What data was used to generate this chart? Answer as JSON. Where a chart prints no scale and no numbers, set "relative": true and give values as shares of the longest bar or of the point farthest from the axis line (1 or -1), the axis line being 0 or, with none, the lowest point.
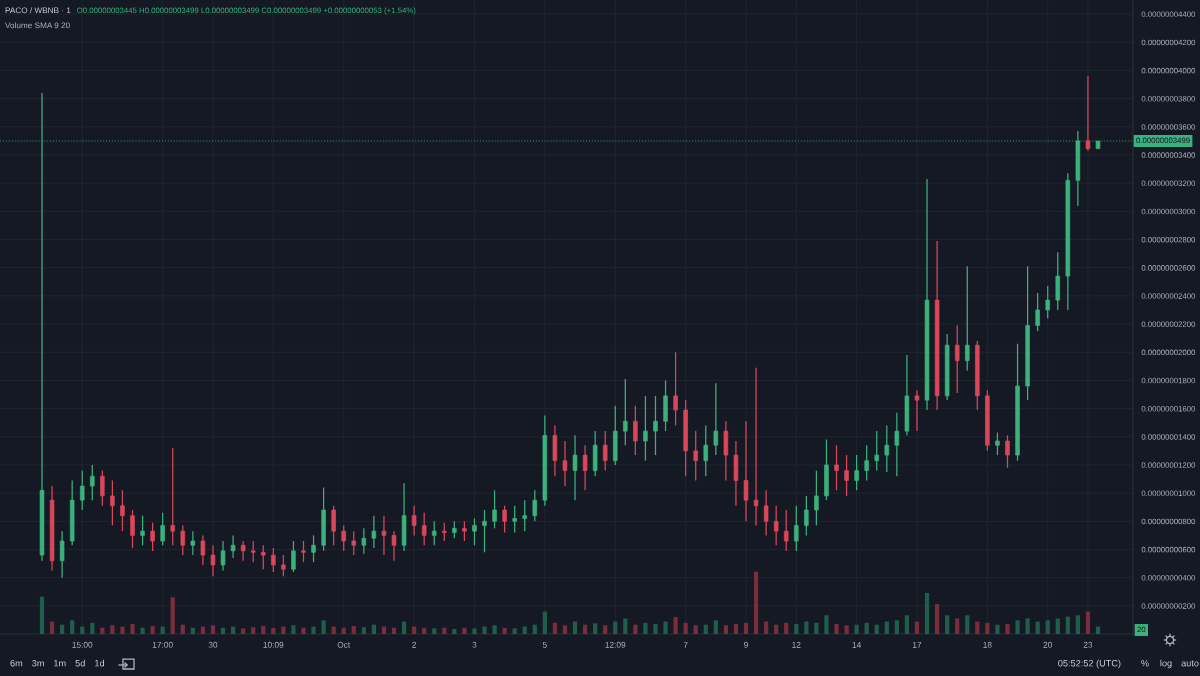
{
  "chart_data": [
    {
      "type": "candlestick",
      "title": "PACO / WBNB · 1",
      "subtitle": "O0.00000003445 H0.00000003499 L0.00000003499 C0.00000003499 +0.00000000053 (+1.54%)",
      "categories": [
        null,
        null,
        null,
        null,
        "15:00",
        null,
        null,
        null,
        null,
        null,
        null,
        null,
        "17:00",
        null,
        null,
        null,
        null,
        "30",
        null,
        null,
        null,
        null,
        null,
        "10:09",
        null,
        null,
        null,
        null,
        null,
        null,
        "Oct",
        null,
        null,
        null,
        null,
        null,
        null,
        "2",
        null,
        null,
        null,
        null,
        null,
        "3",
        null,
        null,
        null,
        null,
        null,
        null,
        "5",
        null,
        null,
        null,
        null,
        null,
        null,
        "12:09",
        null,
        null,
        null,
        null,
        null,
        null,
        "7",
        null,
        null,
        null,
        null,
        null,
        "9",
        null,
        null,
        null,
        null,
        "12",
        null,
        null,
        null,
        null,
        null,
        "14",
        null,
        null,
        null,
        null,
        null,
        "17",
        null,
        null,
        null,
        null,
        null,
        null,
        "18",
        null,
        null,
        null,
        null,
        null,
        "20",
        null,
        null,
        null,
        "23",
        null
      ],
      "ohlc": [
        [
          5.6e-09,
          3.84e-08,
          5.2e-09,
          1.02e-08
        ],
        [
          9.5e-09,
          1.05e-08,
          4.5e-09,
          5.2e-09
        ],
        [
          5.2e-09,
          7.3e-09,
          4e-09,
          6.6e-09
        ],
        [
          6.6e-09,
          1.09e-08,
          6.3e-09,
          9.5e-09
        ],
        [
          9.5e-09,
          1.16e-08,
          8.8e-09,
          1.05e-08
        ],
        [
          1.05e-08,
          1.2e-08,
          9.5e-09,
          1.12e-08
        ],
        [
          1.12e-08,
          1.16e-08,
          9.1e-09,
          9.8e-09
        ],
        [
          9.8e-09,
          1.09e-08,
          7.7e-09,
          9.1e-09
        ],
        [
          9.1e-09,
          1.02e-08,
          7.3e-09,
          8.4e-09
        ],
        [
          8.4e-09,
          8.8e-09,
          6.1e-09,
          7e-09
        ],
        [
          7e-09,
          8.4e-09,
          6.3e-09,
          7.3e-09
        ],
        [
          7.3e-09,
          7.9e-09,
          5.9e-09,
          6.6e-09
        ],
        [
          6.6e-09,
          8.6e-09,
          6.3e-09,
          7.7e-09
        ],
        [
          7.7e-09,
          1.32e-08,
          6.3e-09,
          7.3e-09
        ],
        [
          7.3e-09,
          7.7e-09,
          5.6e-09,
          6.3e-09
        ],
        [
          6.3e-09,
          7.3e-09,
          5.6e-09,
          6.6e-09
        ],
        [
          6.6e-09,
          7e-09,
          4.9e-09,
          5.6e-09
        ],
        [
          5.6e-09,
          6.3e-09,
          4.1e-09,
          4.9e-09
        ],
        [
          4.9e-09,
          6.6e-09,
          4.5e-09,
          5.9e-09
        ],
        [
          5.9e-09,
          7e-09,
          5.4e-09,
          6.3e-09
        ],
        [
          6.3e-09,
          6.6e-09,
          5.2e-09,
          5.9e-09
        ],
        [
          5.9e-09,
          6.6e-09,
          5.1e-09,
          5.8e-09
        ],
        [
          5.8e-09,
          6.3e-09,
          4.6e-09,
          5.6e-09
        ],
        [
          5.6e-09,
          6.1e-09,
          4.4e-09,
          4.9e-09
        ],
        [
          4.9e-09,
          5.6e-09,
          4.1e-09,
          4.6e-09
        ],
        [
          4.6e-09,
          6.6e-09,
          4.4e-09,
          5.9e-09
        ],
        [
          5.9e-09,
          6.6e-09,
          5.1e-09,
          5.8e-09
        ],
        [
          5.8e-09,
          7e-09,
          5.1e-09,
          6.3e-09
        ],
        [
          6.3e-09,
          1.04e-08,
          5.9e-09,
          8.8e-09
        ],
        [
          8.8e-09,
          9.1e-09,
          6.3e-09,
          7.3e-09
        ],
        [
          7.3e-09,
          7.7e-09,
          5.9e-09,
          6.6e-09
        ],
        [
          6.6e-09,
          7.3e-09,
          5.6e-09,
          6.3e-09
        ],
        [
          6.3e-09,
          7.5e-09,
          5.7e-09,
          6.8e-09
        ],
        [
          6.8e-09,
          8.4e-09,
          6.1e-09,
          7.3e-09
        ],
        [
          7.3e-09,
          8.4e-09,
          5.6e-09,
          7e-09
        ],
        [
          7e-09,
          7.3e-09,
          5.2e-09,
          6.3e-09
        ],
        [
          6.3e-09,
          1.07e-08,
          5.9e-09,
          8.4e-09
        ],
        [
          8.4e-09,
          9.1e-09,
          7e-09,
          7.7e-09
        ],
        [
          7.7e-09,
          8.6e-09,
          6.3e-09,
          7e-09
        ],
        [
          7e-09,
          8e-09,
          6.3e-09,
          7.3e-09
        ],
        [
          7.3e-09,
          7.9e-09,
          6.6e-09,
          7.2e-09
        ],
        [
          7.2e-09,
          8e-09,
          6.8e-09,
          7.5e-09
        ],
        [
          7.5e-09,
          8e-09,
          6.6e-09,
          7.3e-09
        ],
        [
          7.3e-09,
          8.2e-09,
          6.3e-09,
          7.7e-09
        ],
        [
          7.7e-09,
          8.8e-09,
          5.8e-09,
          8e-09
        ],
        [
          8e-09,
          1.02e-08,
          7.5e-09,
          8.8e-09
        ],
        [
          8.8e-09,
          9.1e-09,
          7.2e-09,
          8e-09
        ],
        [
          8e-09,
          9.1e-09,
          7.2e-09,
          8.2e-09
        ],
        [
          8.2e-09,
          9.5e-09,
          7.3e-09,
          8.4e-09
        ],
        [
          8.4e-09,
          1.02e-08,
          8e-09,
          9.5e-09
        ],
        [
          9.5e-09,
          1.55e-08,
          9.1e-09,
          1.41e-08
        ],
        [
          1.41e-08,
          1.48e-08,
          1.12e-08,
          1.23e-08
        ],
        [
          1.23e-08,
          1.37e-08,
          1.05e-08,
          1.16e-08
        ],
        [
          1.16e-08,
          1.41e-08,
          9.5e-09,
          1.27e-08
        ],
        [
          1.27e-08,
          1.34e-08,
          1.02e-08,
          1.16e-08
        ],
        [
          1.16e-08,
          1.44e-08,
          1.12e-08,
          1.34e-08
        ],
        [
          1.34e-08,
          1.44e-08,
          1.16e-08,
          1.23e-08
        ],
        [
          1.23e-08,
          1.62e-08,
          1.2e-08,
          1.44e-08
        ],
        [
          1.44e-08,
          1.81e-08,
          1.34e-08,
          1.51e-08
        ],
        [
          1.51e-08,
          1.62e-08,
          1.27e-08,
          1.37e-08
        ],
        [
          1.37e-08,
          1.69e-08,
          1.23e-08,
          1.44e-08
        ],
        [
          1.44e-08,
          1.69e-08,
          1.27e-08,
          1.51e-08
        ],
        [
          1.51e-08,
          1.8e-08,
          1.44e-08,
          1.69e-08
        ],
        [
          1.69e-08,
          2e-08,
          1.48e-08,
          1.59e-08
        ],
        [
          1.59e-08,
          1.66e-08,
          1.12e-08,
          1.3e-08
        ],
        [
          1.3e-08,
          1.44e-08,
          1.09e-08,
          1.23e-08
        ],
        [
          1.23e-08,
          1.48e-08,
          1.12e-08,
          1.34e-08
        ],
        [
          1.34e-08,
          1.78e-08,
          1.27e-08,
          1.44e-08
        ],
        [
          1.44e-08,
          1.51e-08,
          1.09e-08,
          1.27e-08
        ],
        [
          1.27e-08,
          1.37e-08,
          9.1e-09,
          1.09e-08
        ],
        [
          1.09e-08,
          1.51e-08,
          8e-09,
          9.5e-09
        ],
        [
          9.5e-09,
          1.89e-08,
          7.7e-09,
          9.1e-09
        ],
        [
          9.1e-09,
          1.02e-08,
          7e-09,
          8e-09
        ],
        [
          8e-09,
          9.1e-09,
          6.3e-09,
          7.3e-09
        ],
        [
          7.3e-09,
          8.8e-09,
          5.9e-09,
          6.6e-09
        ],
        [
          6.6e-09,
          9.1e-09,
          5.9e-09,
          7.7e-09
        ],
        [
          7.7e-09,
          9.8e-09,
          7e-09,
          8.8e-09
        ],
        [
          8.8e-09,
          1.16e-08,
          7.7e-09,
          9.8e-09
        ],
        [
          9.8e-09,
          1.38e-08,
          9.5e-09,
          1.2e-08
        ],
        [
          1.2e-08,
          1.34e-08,
          1.02e-08,
          1.16e-08
        ],
        [
          1.16e-08,
          1.27e-08,
          9.8e-09,
          1.09e-08
        ],
        [
          1.09e-08,
          1.27e-08,
          1.02e-08,
          1.16e-08
        ],
        [
          1.16e-08,
          1.34e-08,
          1.09e-08,
          1.23e-08
        ],
        [
          1.23e-08,
          1.44e-08,
          1.16e-08,
          1.27e-08
        ],
        [
          1.27e-08,
          1.48e-08,
          1.15e-08,
          1.34e-08
        ],
        [
          1.34e-08,
          1.57e-08,
          1.12e-08,
          1.44e-08
        ],
        [
          1.44e-08,
          1.98e-08,
          1.41e-08,
          1.69e-08
        ],
        [
          1.69e-08,
          1.73e-08,
          1.44e-08,
          1.66e-08
        ],
        [
          1.66e-08,
          3.23e-08,
          1.59e-08,
          2.37e-08
        ],
        [
          2.37e-08,
          2.79e-08,
          1.59e-08,
          1.69e-08
        ],
        [
          1.69e-08,
          2.13e-08,
          1.66e-08,
          2.05e-08
        ],
        [
          2.05e-08,
          2.19e-08,
          1.71e-08,
          1.94e-08
        ],
        [
          1.94e-08,
          2.61e-08,
          1.87e-08,
          2.05e-08
        ],
        [
          2.05e-08,
          2.08e-08,
          1.59e-08,
          1.69e-08
        ],
        [
          1.69e-08,
          1.73e-08,
          1.3e-08,
          1.34e-08
        ],
        [
          1.34e-08,
          1.43e-08,
          1.27e-08,
          1.37e-08
        ],
        [
          1.37e-08,
          1.41e-08,
          1.18e-08,
          1.27e-08
        ],
        [
          1.27e-08,
          2.06e-08,
          1.23e-08,
          1.76e-08
        ],
        [
          1.76e-08,
          2.61e-08,
          1.66e-08,
          2.19e-08
        ],
        [
          2.19e-08,
          2.42e-08,
          2.15e-08,
          2.3e-08
        ],
        [
          2.3e-08,
          2.47e-08,
          2.24e-08,
          2.37e-08
        ],
        [
          2.37e-08,
          2.71e-08,
          2.3e-08,
          2.54e-08
        ],
        [
          2.54e-08,
          3.27e-08,
          2.3e-08,
          3.22e-08
        ],
        [
          3.22e-08,
          3.57e-08,
          3.04e-08,
          3.5e-08
        ],
        [
          3.5e-08,
          3.96e-08,
          3.43e-08,
          3.445e-08
        ],
        [
          3.445e-08,
          3.499e-08,
          3.445e-08,
          3.499e-08
        ]
      ],
      "colors": [
        "#3bb27c",
        "#d9485a",
        "#3bb27c",
        "#3bb27c",
        "#3bb27c",
        "#3bb27c",
        "#d9485a",
        "#d9485a",
        "#d9485a",
        "#d9485a",
        "#3bb27c",
        "#d9485a",
        "#3bb27c",
        "#d9485a",
        "#d9485a",
        "#3bb27c",
        "#d9485a",
        "#d9485a",
        "#3bb27c",
        "#3bb27c",
        "#d9485a",
        "#d9485a",
        "#d9485a",
        "#d9485a",
        "#d9485a",
        "#3bb27c",
        "#d9485a",
        "#3bb27c",
        "#3bb27c",
        "#d9485a",
        "#d9485a",
        "#d9485a",
        "#3bb27c",
        "#3bb27c",
        "#d9485a",
        "#d9485a",
        "#3bb27c",
        "#d9485a",
        "#d9485a",
        "#3bb27c",
        "#d9485a",
        "#3bb27c",
        "#d9485a",
        "#3bb27c",
        "#3bb27c",
        "#3bb27c",
        "#d9485a",
        "#3bb27c",
        "#3bb27c",
        "#3bb27c",
        "#3bb27c",
        "#d9485a",
        "#d9485a",
        "#3bb27c",
        "#d9485a",
        "#3bb27c",
        "#d9485a",
        "#3bb27c",
        "#3bb27c",
        "#d9485a",
        "#3bb27c",
        "#3bb27c",
        "#3bb27c",
        "#d9485a",
        "#d9485a",
        "#d9485a",
        "#3bb27c",
        "#3bb27c",
        "#d9485a",
        "#d9485a",
        "#d9485a",
        "#d9485a",
        "#d9485a",
        "#d9485a",
        "#d9485a",
        "#3bb27c",
        "#3bb27c",
        "#3bb27c",
        "#3bb27c",
        "#d9485a",
        "#d9485a",
        "#3bb27c",
        "#3bb27c",
        "#3bb27c",
        "#3bb27c",
        "#3bb27c",
        "#3bb27c",
        "#d9485a",
        "#3bb27c",
        "#d9485a",
        "#3bb27c",
        "#d9485a",
        "#3bb27c",
        "#d9485a",
        "#d9485a",
        "#3bb27c",
        "#d9485a",
        "#3bb27c",
        "#3bb27c",
        "#3bb27c",
        "#3bb27c",
        "#3bb27c",
        "#3bb27c",
        "#3bb27c",
        "#d9485a",
        "#3bb27c"
      ],
      "ylim": [
        0,
        4.5e-08
      ],
      "yticks": [
        {
          "value": 2e-09,
          "label": "0.00000000200"
        },
        {
          "value": 4e-09,
          "label": "0.00000000400"
        },
        {
          "value": 6e-09,
          "label": "0.00000000600"
        },
        {
          "value": 8e-09,
          "label": "0.00000000800"
        },
        {
          "value": 1e-08,
          "label": "0.00000001000"
        },
        {
          "value": 1.2e-08,
          "label": "0.00000001200"
        },
        {
          "value": 1.4e-08,
          "label": "0.00000001400"
        },
        {
          "value": 1.6e-08,
          "label": "0.00000001600"
        },
        {
          "value": 1.8e-08,
          "label": "0.00000001800"
        },
        {
          "value": 2e-08,
          "label": "0.00000002000"
        },
        {
          "value": 2.2e-08,
          "label": "0.00000002200"
        },
        {
          "value": 2.4e-08,
          "label": "0.00000002400"
        },
        {
          "value": 2.6e-08,
          "label": "0.00000002600"
        },
        {
          "value": 2.8e-08,
          "label": "0.00000002800"
        },
        {
          "value": 3e-08,
          "label": "0.00000003000"
        },
        {
          "value": 3.2e-08,
          "label": "0.00000003200"
        },
        {
          "value": 3.4e-08,
          "label": "0.00000003400"
        },
        {
          "value": 3.6e-08,
          "label": "0.00000003600"
        },
        {
          "value": 3.8e-08,
          "label": "0.00000003800"
        },
        {
          "value": 4e-08,
          "label": "0.00000004000"
        },
        {
          "value": 4.2e-08,
          "label": "0.00000004200"
        },
        {
          "value": 4.4e-08,
          "label": "0.00000004400"
        }
      ],
      "grid": true,
      "ref_lines": [
        {
          "axis": "y",
          "value": 3.499e-08,
          "label": "0.00000003499",
          "color": "#3bb27c",
          "line_style": "dotted"
        }
      ],
      "annotations": [
        "6m",
        "3m",
        "1m",
        "5d",
        "1d",
        "05:52:52 (UTC)",
        "%",
        "log",
        "auto",
        "20"
      ]
    },
    {
      "type": "bar",
      "relative": true,
      "title": "Volume SMA 9 20",
      "categories": [
        null,
        null,
        null,
        null,
        null,
        null,
        null,
        null,
        null,
        null,
        null,
        null,
        null,
        null,
        null,
        null,
        null,
        null,
        null,
        null,
        null,
        null,
        null,
        null,
        null,
        null,
        null,
        null,
        null,
        null,
        null,
        null,
        null,
        null,
        null,
        null,
        null,
        null,
        null,
        null,
        null,
        null,
        null,
        null,
        null,
        null,
        null,
        null,
        null,
        null,
        null,
        null,
        null,
        null,
        null,
        null,
        null,
        null,
        null,
        null,
        null,
        null,
        null,
        null,
        null,
        null,
        null,
        null,
        null,
        null,
        null,
        null,
        null,
        null,
        null,
        null,
        null,
        null,
        null,
        null,
        null,
        null,
        null,
        null,
        null,
        null,
        null,
        null,
        null,
        null,
        null,
        null,
        null,
        null,
        null,
        null,
        null,
        null,
        null,
        null,
        null,
        null,
        null,
        null,
        null,
        null
      ],
      "values": [
        0.6,
        0.2,
        0.15,
        0.22,
        0.12,
        0.18,
        0.1,
        0.14,
        0.12,
        0.16,
        0.1,
        0.13,
        0.12,
        0.59,
        0.15,
        0.1,
        0.12,
        0.14,
        0.1,
        0.12,
        0.09,
        0.11,
        0.13,
        0.1,
        0.12,
        0.14,
        0.1,
        0.12,
        0.22,
        0.12,
        0.1,
        0.13,
        0.11,
        0.15,
        0.12,
        0.1,
        0.2,
        0.12,
        0.1,
        0.09,
        0.1,
        0.08,
        0.1,
        0.09,
        0.12,
        0.14,
        0.1,
        0.09,
        0.12,
        0.15,
        0.36,
        0.18,
        0.14,
        0.2,
        0.15,
        0.17,
        0.14,
        0.2,
        0.25,
        0.15,
        0.18,
        0.16,
        0.2,
        0.27,
        0.18,
        0.14,
        0.15,
        0.22,
        0.14,
        0.16,
        0.18,
        1.0,
        0.2,
        0.15,
        0.18,
        0.16,
        0.2,
        0.18,
        0.3,
        0.16,
        0.14,
        0.15,
        0.18,
        0.15,
        0.2,
        0.22,
        0.3,
        0.2,
        0.66,
        0.48,
        0.3,
        0.25,
        0.3,
        0.2,
        0.18,
        0.15,
        0.16,
        0.22,
        0.25,
        0.2,
        0.22,
        0.25,
        0.28,
        0.3,
        0.36,
        0.12
      ],
      "colors": [
        "#1f5e4a",
        "#7a2e3b",
        "#1f5e4a",
        "#1f5e4a",
        "#1f5e4a",
        "#1f5e4a",
        "#7a2e3b",
        "#7a2e3b",
        "#7a2e3b",
        "#7a2e3b",
        "#1f5e4a",
        "#7a2e3b",
        "#1f5e4a",
        "#7a2e3b",
        "#7a2e3b",
        "#1f5e4a",
        "#7a2e3b",
        "#7a2e3b",
        "#1f5e4a",
        "#1f5e4a",
        "#7a2e3b",
        "#7a2e3b",
        "#7a2e3b",
        "#7a2e3b",
        "#7a2e3b",
        "#1f5e4a",
        "#7a2e3b",
        "#1f5e4a",
        "#1f5e4a",
        "#7a2e3b",
        "#7a2e3b",
        "#7a2e3b",
        "#1f5e4a",
        "#1f5e4a",
        "#7a2e3b",
        "#7a2e3b",
        "#1f5e4a",
        "#7a2e3b",
        "#7a2e3b",
        "#1f5e4a",
        "#7a2e3b",
        "#1f5e4a",
        "#7a2e3b",
        "#1f5e4a",
        "#1f5e4a",
        "#1f5e4a",
        "#7a2e3b",
        "#1f5e4a",
        "#1f5e4a",
        "#1f5e4a",
        "#1f5e4a",
        "#7a2e3b",
        "#7a2e3b",
        "#1f5e4a",
        "#7a2e3b",
        "#1f5e4a",
        "#7a2e3b",
        "#1f5e4a",
        "#1f5e4a",
        "#7a2e3b",
        "#1f5e4a",
        "#1f5e4a",
        "#1f5e4a",
        "#7a2e3b",
        "#7a2e3b",
        "#7a2e3b",
        "#1f5e4a",
        "#1f5e4a",
        "#7a2e3b",
        "#7a2e3b",
        "#7a2e3b",
        "#7a2e3b",
        "#7a2e3b",
        "#7a2e3b",
        "#7a2e3b",
        "#1f5e4a",
        "#1f5e4a",
        "#1f5e4a",
        "#1f5e4a",
        "#7a2e3b",
        "#7a2e3b",
        "#1f5e4a",
        "#1f5e4a",
        "#1f5e4a",
        "#1f5e4a",
        "#1f5e4a",
        "#1f5e4a",
        "#7a2e3b",
        "#1f5e4a",
        "#7a2e3b",
        "#1f5e4a",
        "#7a2e3b",
        "#1f5e4a",
        "#7a2e3b",
        "#7a2e3b",
        "#1f5e4a",
        "#7a2e3b",
        "#1f5e4a",
        "#1f5e4a",
        "#1f5e4a",
        "#1f5e4a",
        "#1f5e4a",
        "#1f5e4a",
        "#1f5e4a",
        "#7a2e3b",
        "#1f5e4a"
      ]
    }
  ]
}
